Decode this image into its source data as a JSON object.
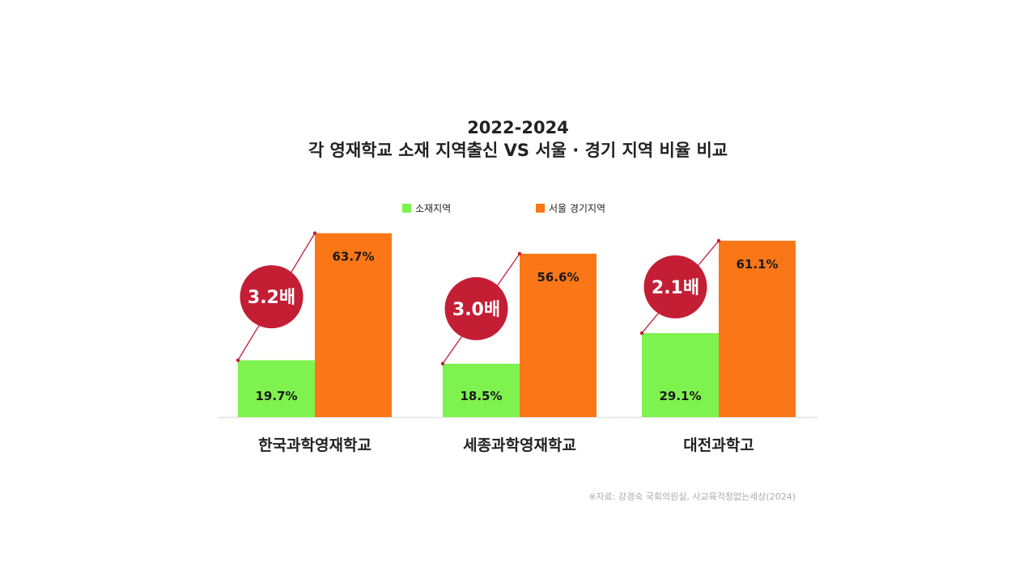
{
  "chart_data": {
    "type": "bar",
    "title": "2022-2024",
    "subtitle": "각 영재학교 소재 지역출신 VS 서울 · 경기 지역 비율 비교",
    "categories": [
      "한국과학영재학교",
      "세종과학영재학교",
      "대전과학고"
    ],
    "series": [
      {
        "name": "소재지역",
        "values": [
          19.7,
          18.5,
          29.1
        ],
        "labels": [
          "19.7%",
          "18.5%",
          "29.1%"
        ]
      },
      {
        "name": "서울 경기지역",
        "values": [
          63.7,
          56.6,
          61.1
        ],
        "labels": [
          "63.7%",
          "56.6%",
          "61.1%"
        ]
      }
    ],
    "ratios": [
      "3.2배",
      "3.0배",
      "2.1배"
    ],
    "ylim": [
      0,
      70
    ],
    "grid": false,
    "legend": "top-center",
    "source": "※자료: 강경숙 국회의원실, 사교육걱정없는세상(2024)"
  },
  "colors": {
    "local": "#7ef24e",
    "seoul": "#fb7617",
    "ratio_circle": "#c41e35",
    "baseline": "#e8e8e8"
  }
}
